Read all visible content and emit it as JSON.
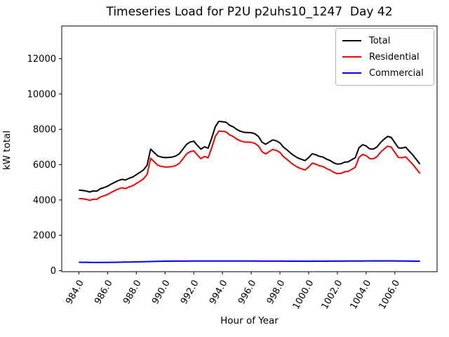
{
  "chart_data": {
    "type": "line",
    "title": "Timeseries Load for P2U p2uhs10_1247  Day 42",
    "xlabel": "Hour of Year",
    "ylabel": "kW total",
    "grid": false,
    "legend": {
      "position": "upper right",
      "entries": [
        "Total",
        "Residential",
        "Commercial"
      ]
    },
    "xlim": [
      982.81,
      1008.94
    ],
    "ylim": [
      -60,
      13850
    ],
    "xticks": [
      984,
      986,
      988,
      990,
      992,
      994,
      996,
      998,
      1000,
      1002,
      1004,
      1006
    ],
    "xtick_labels": [
      "984.0",
      "986.0",
      "988.0",
      "990.0",
      "992.0",
      "994.0",
      "996.0",
      "998.0",
      "1000.0",
      "1002.0",
      "1004.0",
      "1006.0"
    ],
    "yticks": [
      0,
      2000,
      4000,
      6000,
      8000,
      10000,
      12000
    ],
    "x": [
      984,
      984.25,
      984.5,
      984.75,
      985,
      985.25,
      985.5,
      985.75,
      986,
      986.25,
      986.5,
      986.75,
      987,
      987.25,
      987.5,
      987.75,
      988,
      988.25,
      988.5,
      988.75,
      989,
      989.25,
      989.5,
      989.75,
      990,
      990.25,
      990.5,
      990.75,
      991,
      991.25,
      991.5,
      991.75,
      992,
      992.25,
      992.5,
      992.75,
      993,
      993.25,
      993.5,
      993.75,
      994,
      994.25,
      994.5,
      994.75,
      995,
      995.25,
      995.5,
      995.75,
      996,
      996.25,
      996.5,
      996.75,
      997,
      997.25,
      997.5,
      997.75,
      998,
      998.25,
      998.5,
      998.75,
      999,
      999.25,
      999.5,
      999.75,
      1000,
      1000.25,
      1000.5,
      1000.75,
      1001,
      1001.25,
      1001.5,
      1001.75,
      1002,
      1002.25,
      1002.5,
      1002.75,
      1003,
      1003.25,
      1003.5,
      1003.75,
      1004,
      1004.25,
      1004.5,
      1004.75,
      1005,
      1005.25,
      1005.5,
      1005.75,
      1006,
      1006.25,
      1006.5,
      1006.75,
      1007,
      1007.25,
      1007.5,
      1007.75
    ],
    "series": [
      {
        "name": "Total",
        "color": "#000000",
        "values": [
          4560,
          4540,
          4510,
          4450,
          4510,
          4500,
          4640,
          4700,
          4780,
          4900,
          5000,
          5100,
          5170,
          5130,
          5230,
          5300,
          5430,
          5560,
          5700,
          5960,
          6880,
          6680,
          6490,
          6430,
          6400,
          6410,
          6430,
          6490,
          6620,
          6880,
          7150,
          7280,
          7330,
          7090,
          6880,
          7010,
          6930,
          7500,
          8150,
          8450,
          8430,
          8400,
          8230,
          8140,
          7990,
          7890,
          7830,
          7820,
          7810,
          7750,
          7600,
          7280,
          7150,
          7280,
          7400,
          7350,
          7230,
          6990,
          6830,
          6650,
          6500,
          6380,
          6300,
          6230,
          6400,
          6620,
          6560,
          6470,
          6430,
          6310,
          6230,
          6100,
          6030,
          6050,
          6140,
          6160,
          6280,
          6400,
          6950,
          7130,
          7060,
          6890,
          6880,
          7000,
          7250,
          7440,
          7600,
          7540,
          7240,
          6950,
          6940,
          6990,
          6770,
          6550,
          6290,
          6030
        ]
      },
      {
        "name": "Residential",
        "color": "#ff0000",
        "values": [
          4085,
          4068,
          4040,
          3982,
          4044,
          4035,
          4175,
          4234,
          4312,
          4430,
          4527,
          4624,
          4690,
          4646,
          4742,
          4808,
          4934,
          5060,
          5195,
          5450,
          6365,
          6160,
          5965,
          5900,
          5865,
          5872,
          5890,
          5949,
          6078,
          6337,
          6607,
          6736,
          6786,
          6546,
          6335,
          6465,
          6385,
          6954,
          7604,
          7903,
          7883,
          7853,
          7684,
          7594,
          7444,
          7345,
          7285,
          7275,
          7266,
          7206,
          7057,
          6737,
          6608,
          6738,
          6859,
          6809,
          6690,
          6451,
          6292,
          6113,
          5964,
          5845,
          5766,
          5697,
          5867,
          6086,
          6025,
          5934,
          5893,
          5772,
          5691,
          5560,
          5489,
          5508,
          5597,
          5616,
          5735,
          5854,
          6403,
          6582,
          6511,
          6340,
          6330,
          6449,
          6699,
          6888,
          7048,
          6989,
          6690,
          6402,
          6394,
          6446,
          6228,
          6012,
          5756,
          5500
        ]
      },
      {
        "name": "Commercial",
        "color": "#0000ff",
        "values": [
          475,
          472,
          470,
          468,
          466,
          465,
          465,
          466,
          468,
          470,
          473,
          476,
          480,
          484,
          488,
          492,
          496,
          500,
          505,
          510,
          515,
          520,
          525,
          530,
          535,
          538,
          540,
          541,
          542,
          543,
          543,
          544,
          544,
          544,
          545,
          545,
          545,
          546,
          546,
          547,
          547,
          547,
          546,
          546,
          546,
          545,
          545,
          545,
          544,
          544,
          543,
          543,
          542,
          542,
          541,
          541,
          540,
          539,
          538,
          537,
          536,
          535,
          534,
          533,
          533,
          534,
          535,
          536,
          537,
          538,
          539,
          540,
          541,
          542,
          543,
          544,
          545,
          546,
          547,
          548,
          549,
          550,
          550,
          551,
          551,
          552,
          552,
          551,
          550,
          548,
          546,
          544,
          542,
          538,
          534,
          530
        ]
      }
    ]
  }
}
